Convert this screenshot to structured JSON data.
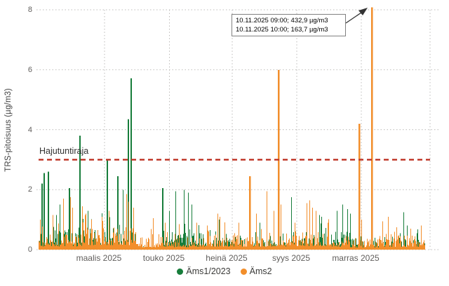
{
  "chart_data": {
    "type": "bar",
    "title": "",
    "ylabel": "TRS-pitoisuus (µg/m3)",
    "xlabel": "",
    "ylim": [
      0,
      8
    ],
    "yticks": [
      0,
      2,
      4,
      6,
      8
    ],
    "x_tick_labels": [
      "maalis 2025",
      "touko 2025",
      "heinä 2025",
      "syys 2025",
      "marras 2025"
    ],
    "grid": "dotted",
    "legend_position": "bottom-center",
    "x_unit": "px offset within 558px plot width, Jan 2025 to Dec 2025, ~1.53 px/day",
    "series": [
      {
        "name": "Äms1/2023",
        "color": "#177d3b",
        "layer": "back"
      },
      {
        "name": "Äms2",
        "color": "#f28e2b",
        "layer": "front"
      }
    ],
    "threshold_line": {
      "label": "Hajutuntiraja",
      "value": 3,
      "color": "#c0392b",
      "style": "dashed"
    },
    "annotation": {
      "line1": "10.11.2025 09:00; 432,9 µg/m3",
      "line2": "10.11.2025 10:00; 163,7 µg/m3",
      "points_to_value": 432.9,
      "clipped_at": 8
    },
    "notable_spikes": {
      "green": [
        [
          4,
          2.2
        ],
        [
          7,
          2.55
        ],
        [
          13,
          2.6
        ],
        [
          30,
          1.5
        ],
        [
          43,
          2.05
        ],
        [
          58,
          3.8
        ],
        [
          70,
          1.3
        ],
        [
          97,
          3.0
        ],
        [
          112,
          2.45
        ],
        [
          120,
          2.0
        ],
        [
          127,
          4.35
        ],
        [
          131,
          5.72
        ],
        [
          176,
          2.05
        ],
        [
          186,
          1.3
        ],
        [
          195,
          1.95
        ],
        [
          207,
          2.0
        ],
        [
          213,
          1.9
        ],
        [
          218,
          1.5
        ],
        [
          257,
          1.0
        ],
        [
          315,
          0.9
        ],
        [
          360,
          1.75
        ],
        [
          400,
          1.15
        ],
        [
          403,
          1.1
        ],
        [
          425,
          1.3
        ],
        [
          433,
          1.5
        ],
        [
          440,
          1.35
        ],
        [
          444,
          1.2
        ],
        [
          520,
          1.25
        ],
        [
          525,
          0.8
        ],
        [
          530,
          0.7
        ]
      ],
      "orange": [
        [
          2,
          1.0
        ],
        [
          20,
          1.15
        ],
        [
          35,
          1.7
        ],
        [
          45,
          1.75
        ],
        [
          48,
          1.4
        ],
        [
          62,
          1.45
        ],
        [
          67,
          1.2
        ],
        [
          75,
          1.0
        ],
        [
          90,
          1.1
        ],
        [
          100,
          1.3
        ],
        [
          125,
          1.85
        ],
        [
          128,
          1.6
        ],
        [
          135,
          1.4
        ],
        [
          163,
          1.05
        ],
        [
          180,
          0.9
        ],
        [
          200,
          0.85
        ],
        [
          225,
          0.9
        ],
        [
          240,
          0.8
        ],
        [
          255,
          1.2
        ],
        [
          258,
          1.1
        ],
        [
          285,
          0.9
        ],
        [
          300,
          2.45
        ],
        [
          310,
          1.2
        ],
        [
          325,
          1.95
        ],
        [
          335,
          1.3
        ],
        [
          341,
          6.0
        ],
        [
          345,
          1.5
        ],
        [
          365,
          0.9
        ],
        [
          382,
          1.55
        ],
        [
          386,
          1.65
        ],
        [
          390,
          1.4
        ],
        [
          395,
          1.3
        ],
        [
          412,
          0.9
        ],
        [
          456,
          4.2
        ],
        [
          460,
          1.0
        ],
        [
          474,
          432.9
        ],
        [
          490,
          0.95
        ],
        [
          498,
          1.1
        ],
        [
          510,
          0.75
        ],
        [
          530,
          0.7
        ],
        [
          545,
          0.8
        ]
      ]
    },
    "baseline_noise": {
      "seed": 1337,
      "regions": [
        {
          "from": 0,
          "to": 65,
          "g": 1.4,
          "o": 1.1
        },
        {
          "from": 65,
          "to": 140,
          "g": 1.3,
          "o": 1.5
        },
        {
          "from": 140,
          "to": 178,
          "g": 0.22,
          "o": 0.85
        },
        {
          "from": 178,
          "to": 240,
          "g": 1.3,
          "o": 0.85
        },
        {
          "from": 240,
          "to": 300,
          "g": 0.85,
          "o": 1.05
        },
        {
          "from": 300,
          "to": 365,
          "g": 0.8,
          "o": 1.0
        },
        {
          "from": 365,
          "to": 415,
          "g": 1.0,
          "o": 1.2
        },
        {
          "from": 415,
          "to": 448,
          "g": 1.2,
          "o": 0.85
        },
        {
          "from": 448,
          "to": 485,
          "g": 0.6,
          "o": 0.7
        },
        {
          "from": 485,
          "to": 551,
          "g": 0.8,
          "o": 0.95
        }
      ]
    },
    "colors": {
      "gridline": "#bdbbb9",
      "axis_text": "#605e5c",
      "threshold_red": "#c0392b"
    }
  }
}
